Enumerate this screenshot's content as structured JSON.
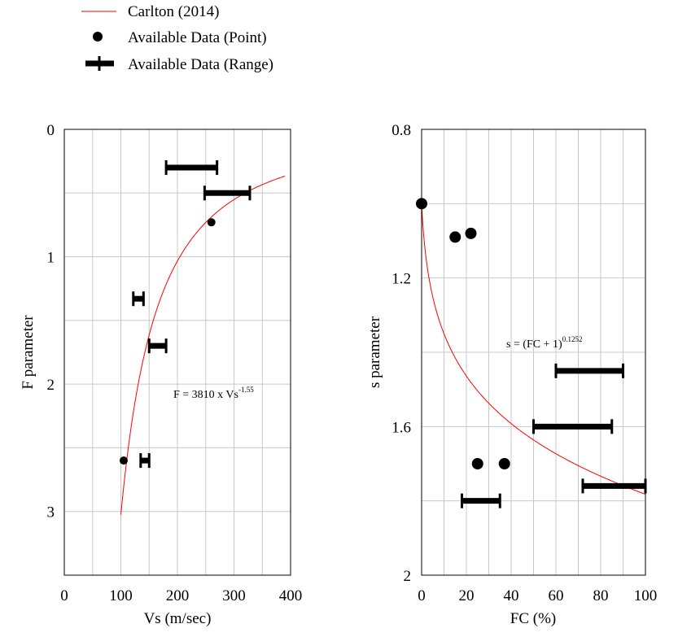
{
  "legend": {
    "items": [
      {
        "label": "Carlton (2014)",
        "symbol": "red-line"
      },
      {
        "label": "Available Data (Point)",
        "symbol": "dot"
      },
      {
        "label": "Available Data (Range)",
        "symbol": "range-bar"
      }
    ]
  },
  "colors": {
    "curve": "#ff0000",
    "marks": "#000000",
    "grid": "#c8c8c8"
  },
  "chart_data": [
    {
      "id": "left",
      "type": "scatter",
      "xlabel": "Vs (m/sec)",
      "ylabel": "F parameter",
      "xlim": [
        0,
        400
      ],
      "ylim": [
        0,
        3.5
      ],
      "y_inverted": true,
      "x_ticks": [
        0,
        100,
        200,
        300,
        400
      ],
      "y_ticks": [
        0,
        1,
        2,
        3
      ],
      "x_grid_step": 50,
      "y_grid_step": 0.5,
      "grid": true,
      "equation": {
        "base": "F = 3810 x Vs",
        "exponent": "-1.55"
      },
      "curve": {
        "name": "Carlton (2014)",
        "formula": "F = 3810 * Vs^-1.55",
        "x_range": [
          100,
          390
        ]
      },
      "points": [
        {
          "x": 260,
          "y": 0.73
        },
        {
          "x": 105,
          "y": 2.6
        }
      ],
      "ranges": [
        {
          "x_min": 180,
          "x_max": 270,
          "y": 0.3
        },
        {
          "x_min": 248,
          "x_max": 328,
          "y": 0.5
        },
        {
          "x_min": 122,
          "x_max": 140,
          "y": 1.33
        },
        {
          "x_min": 150,
          "x_max": 180,
          "y": 1.7
        },
        {
          "x_min": 135,
          "x_max": 150,
          "y": 2.6
        }
      ]
    },
    {
      "id": "right",
      "type": "scatter",
      "xlabel": "FC (%)",
      "ylabel": "s parameter",
      "xlim": [
        0,
        100
      ],
      "ylim": [
        0.8,
        2.0
      ],
      "y_inverted": true,
      "x_ticks": [
        0,
        20,
        40,
        60,
        80,
        100
      ],
      "y_ticks": [
        0.8,
        1.2,
        1.6,
        2
      ],
      "x_grid_step": 10,
      "y_grid_step": 0.2,
      "grid": true,
      "equation": {
        "base": "s = (FC + 1)",
        "exponent": "0.1252"
      },
      "curve": {
        "name": "Carlton (2014)",
        "formula": "s = (FC + 1)^0.1252",
        "x_range": [
          0,
          100
        ]
      },
      "points": [
        {
          "x": 0,
          "y": 1.0
        },
        {
          "x": 15,
          "y": 1.09
        },
        {
          "x": 22,
          "y": 1.08
        },
        {
          "x": 25,
          "y": 1.7
        },
        {
          "x": 37,
          "y": 1.7
        }
      ],
      "ranges": [
        {
          "x_min": 60,
          "x_max": 90,
          "y": 1.45
        },
        {
          "x_min": 50,
          "x_max": 85,
          "y": 1.6
        },
        {
          "x_min": 72,
          "x_max": 100,
          "y": 1.76
        },
        {
          "x_min": 18,
          "x_max": 35,
          "y": 1.8
        }
      ]
    }
  ]
}
